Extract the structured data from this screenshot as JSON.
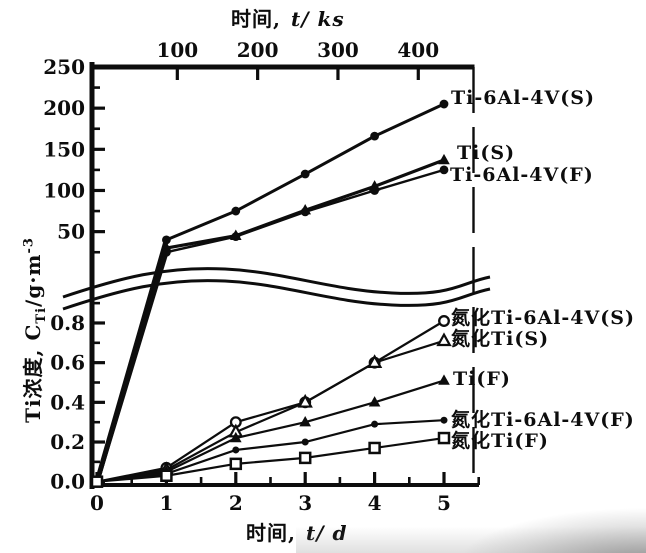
{
  "figure": {
    "top_axis": {
      "title_cjk": "时间,",
      "title_unit": "t/ ks"
    },
    "bottom_axis": {
      "title_cjk": "时间,",
      "title_unit": "t/ d"
    },
    "y_axis": {
      "label_prefix": "Ti浓度, C",
      "label_sub": "Ti",
      "label_mid": "/g·m",
      "label_sup": "-3"
    },
    "colors": {
      "ink": "#0d0d0d",
      "paper": "#ffffff"
    }
  },
  "chart_data": {
    "type": "line",
    "title": "",
    "xlabel_bottom": "时间, t/d",
    "xlabel_top": "时间, t/ks",
    "ylabel": "Ti浓度, CTi/g·m⁻³",
    "x_days": [
      0,
      1,
      2,
      3,
      4,
      5
    ],
    "bottom_axis_ticks_d": [
      0,
      1,
      2,
      3,
      4,
      5
    ],
    "bottom_axis_minor_ticks_d": [
      0.5,
      1.5,
      2.5,
      3.5,
      4.5,
      5.5
    ],
    "top_axis_ticks_ks": [
      100,
      200,
      300,
      400
    ],
    "y_axis_break": true,
    "upper_axis_ticks": [
      250,
      200,
      150,
      100,
      50
    ],
    "upper_axis_minor_ticks": [
      225,
      175,
      125,
      75,
      25
    ],
    "lower_axis_ticks": [
      "0.8",
      "0.6",
      "0.4",
      "0.2",
      "0.0"
    ],
    "lower_axis_minor_ticks": [
      0.9,
      0.7,
      0.5,
      0.3,
      0.1
    ],
    "upper_ylim": [
      0,
      250
    ],
    "lower_ylim": [
      0,
      0.9
    ],
    "series": [
      {
        "name": "Ti-6Al-4V(S)",
        "scale": "upper",
        "marker": "circle-filled",
        "values": [
          0,
          40,
          75,
          120,
          166,
          205
        ]
      },
      {
        "name": "Ti(S)",
        "scale": "upper",
        "marker": "triangle-filled",
        "values": [
          0,
          30,
          45,
          76,
          105,
          137
        ]
      },
      {
        "name": "Ti-6Al-4V(F)",
        "scale": "upper",
        "marker": "circle-filled",
        "values": [
          0,
          25,
          44,
          74,
          100,
          125
        ]
      },
      {
        "name": "氮化Ti-6Al-4V(S)",
        "scale": "lower",
        "marker": "circle-open",
        "values": [
          0,
          0.07,
          0.3,
          0.4,
          0.6,
          0.81
        ]
      },
      {
        "name": "氮化Ti(S)",
        "scale": "lower",
        "marker": "triangle-open",
        "values": [
          0,
          0.06,
          0.25,
          0.4,
          0.6,
          0.71
        ]
      },
      {
        "name": "Ti(F)",
        "scale": "lower",
        "marker": "triangle-filled",
        "values": [
          0,
          0.05,
          0.22,
          0.3,
          0.4,
          0.51
        ]
      },
      {
        "name": "氮化Ti-6Al-4V(F)",
        "scale": "lower",
        "marker": "circle-filled-small",
        "values": [
          0,
          0.04,
          0.16,
          0.2,
          0.29,
          0.31
        ]
      },
      {
        "name": "氮化Ti(F)",
        "scale": "lower",
        "marker": "square-open",
        "values": [
          0,
          0.03,
          0.09,
          0.12,
          0.17,
          0.22
        ]
      }
    ]
  }
}
